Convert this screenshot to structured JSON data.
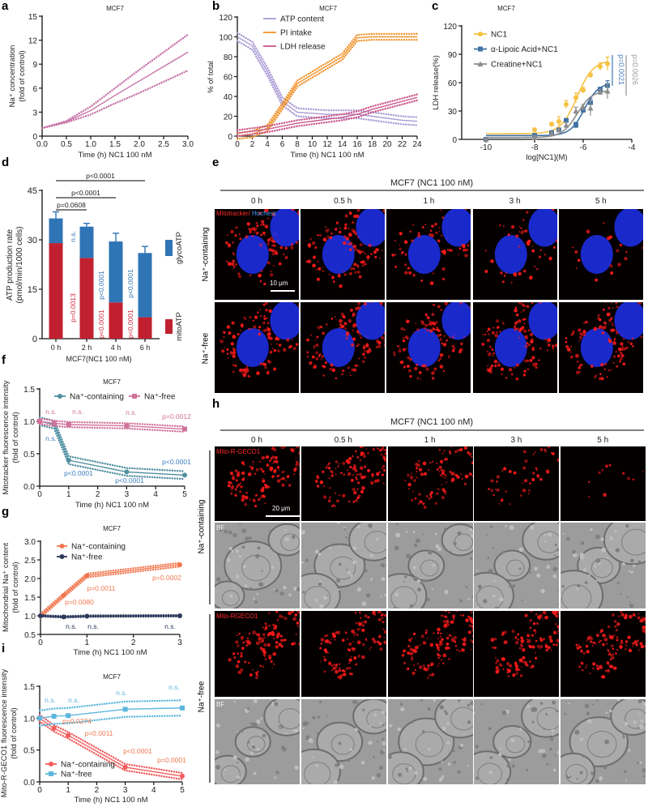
{
  "panel_labels": {
    "a": "a",
    "b": "b",
    "c": "c",
    "d": "d",
    "e": "e",
    "f": "f",
    "g": "g",
    "h": "h",
    "i": "i"
  },
  "chart_data": [
    {
      "panel": "a",
      "type": "line",
      "title": "MCF7",
      "xlabel": "Time (h) NC1 100 nM",
      "ylabel": [
        "Na⁺ concentration",
        "(fold of control)"
      ],
      "xlim": [
        0,
        3
      ],
      "ylim": [
        0,
        15
      ],
      "xticks": [
        0,
        0.5,
        1,
        1.5,
        2,
        2.5,
        3
      ],
      "xtick_labels": [
        "0.0",
        "0.5",
        "1.0",
        "1.5",
        "2.0",
        "2.5",
        "3.0"
      ],
      "yticks": [
        0,
        3,
        6,
        9,
        12,
        15
      ],
      "ytick_labels": [
        "0",
        "3",
        "6",
        "9",
        "12",
        "15"
      ],
      "series": [
        {
          "name": "Na⁺ concentration",
          "color": "#c774a9",
          "x": [
            0,
            0.5,
            1,
            1.5,
            2,
            2.5,
            3
          ],
          "y": [
            1,
            1.8,
            3.2,
            5.1,
            6.9,
            8.7,
            10.5
          ],
          "upper": [
            1,
            1.9,
            3.7,
            6.0,
            8.3,
            10.5,
            12.7
          ],
          "lower": [
            1,
            1.7,
            2.7,
            4.1,
            5.4,
            6.8,
            8.2
          ]
        }
      ]
    },
    {
      "panel": "b",
      "type": "line",
      "title": "MCF7",
      "xlabel": "Time (h) NC1 100 nM",
      "ylabel": [
        "% of total"
      ],
      "xlim": [
        0,
        24
      ],
      "ylim": [
        0,
        120
      ],
      "xticks": [
        0,
        2,
        4,
        6,
        8,
        10,
        12,
        14,
        16,
        18,
        20,
        22,
        24
      ],
      "xtick_labels": [
        "0",
        "2",
        "4",
        "6",
        "8",
        "10",
        "12",
        "14",
        "16",
        "18",
        "20",
        "22",
        "24"
      ],
      "yticks": [
        0,
        20,
        40,
        60,
        80,
        100,
        120
      ],
      "ytick_labels": [
        "0",
        "20",
        "40",
        "60",
        "80",
        "100",
        "120"
      ],
      "legend_position": "top-left",
      "series": [
        {
          "name": "ATP content",
          "color": "#a99bd6",
          "band": 4,
          "x": [
            0,
            2,
            4,
            6,
            8,
            10,
            12,
            14,
            16,
            18,
            20,
            22,
            24
          ],
          "y": [
            100,
            91,
            65,
            35,
            24,
            23,
            22,
            22,
            22,
            20,
            18,
            16,
            15
          ]
        },
        {
          "name": "PI intake",
          "color": "#f0932b",
          "band": 3,
          "x": [
            0,
            2,
            4,
            6,
            8,
            10,
            12,
            14,
            16,
            18,
            20,
            22,
            24
          ],
          "y": [
            0,
            2,
            8,
            30,
            53,
            62,
            71,
            80,
            99,
            100,
            100,
            100,
            100
          ]
        },
        {
          "name": "LDH release",
          "color": "#c9568a",
          "band": 3,
          "x": [
            0,
            2,
            4,
            6,
            8,
            10,
            12,
            14,
            16,
            18,
            20,
            22,
            24
          ],
          "y": [
            3,
            5,
            7,
            10,
            13,
            15,
            17,
            19,
            22,
            27,
            31,
            35,
            39
          ]
        }
      ]
    },
    {
      "panel": "c",
      "type": "scatter",
      "title": "MCF7",
      "xlabel": "log[NC1](M)",
      "ylabel": [
        "LDH release(%)"
      ],
      "xlim": [
        -11,
        -4
      ],
      "ylim": [
        0,
        120
      ],
      "xticks": [
        -10,
        -8,
        -6,
        -4
      ],
      "xtick_labels": [
        "-10",
        "-8",
        "-6",
        "-4"
      ],
      "yticks": [
        0,
        30,
        60,
        90,
        120
      ],
      "ytick_labels": [
        "0",
        "30",
        "60",
        "90",
        "120"
      ],
      "legend_position": "top-left",
      "series": [
        {
          "name": "NC1",
          "color": "#f6c142",
          "marker": "circle",
          "x": [
            -10,
            -8,
            -7.3,
            -7,
            -6.7,
            -6.3,
            -6,
            -5.7,
            -5.3,
            -5
          ],
          "y": [
            0,
            10,
            16,
            19,
            37,
            44,
            52,
            68,
            77,
            80
          ],
          "err": [
            1,
            2,
            2,
            5,
            4,
            5,
            3,
            2,
            4,
            7
          ],
          "fit": {
            "bottom": 6,
            "top": 84,
            "logEC50": -6.25,
            "hill": 1.3
          }
        },
        {
          "name": "α-Lipoic Acid+NC1",
          "color": "#3f73a6",
          "marker": "square",
          "x": [
            -10,
            -8,
            -7.3,
            -7,
            -6.7,
            -6.3,
            -6,
            -5.7,
            -5.3,
            -5
          ],
          "y": [
            0,
            4,
            7,
            10,
            20,
            15,
            31,
            39,
            53,
            57
          ],
          "err": [
            1,
            2,
            2,
            2,
            2,
            3,
            3,
            4,
            2,
            5
          ],
          "fit": {
            "bottom": 4,
            "top": 60,
            "logEC50": -5.95,
            "hill": 1.5
          }
        },
        {
          "name": "Creatine+NC1",
          "color": "#8c8c8c",
          "marker": "triangle",
          "x": [
            -10,
            -8,
            -7.3,
            -7,
            -6.7,
            -6.3,
            -6,
            -5.7,
            -5.3,
            -5
          ],
          "y": [
            0,
            2,
            6,
            10,
            15,
            30,
            34,
            33,
            50,
            51
          ],
          "err": [
            1,
            2,
            2,
            2,
            3,
            4,
            3,
            8,
            3,
            8
          ],
          "fit": {
            "bottom": 2,
            "top": 52,
            "logEC50": -6.25,
            "hill": 1.4
          }
        }
      ],
      "annotations": [
        {
          "text": "p=0.0021",
          "color": "#4a7fbf"
        },
        {
          "text": "p=0.0026",
          "color": "#9a9a9a"
        }
      ]
    },
    {
      "panel": "d",
      "type": "bar",
      "stacked": true,
      "xlabel": "MCF7(NC1 100 nM)",
      "ylabel": [
        "ATP production rate",
        "(pmol/min/1000 cells)"
      ],
      "categories": [
        "0 h",
        "2 h",
        "4 h",
        "6 h"
      ],
      "ylim": [
        0,
        45
      ],
      "yticks": [
        0,
        15,
        30,
        45
      ],
      "ytick_labels": [
        "0",
        "15",
        "30",
        "45"
      ],
      "series": [
        {
          "name": "mitoATP",
          "color": "#c0202f",
          "values": [
            29,
            24.5,
            11,
            6.5
          ],
          "err": [
            1.3,
            1,
            2,
            2
          ]
        },
        {
          "name": "glycoATP",
          "color": "#2f74b5",
          "values": [
            7.5,
            9.5,
            18.5,
            19.5
          ],
          "err": [
            2,
            1,
            2.5,
            2
          ]
        }
      ],
      "comparisons": [
        {
          "label": "p<0.0001",
          "from": 0,
          "to": 3
        },
        {
          "label": "p<0.0001",
          "from": 0,
          "to": 2
        },
        {
          "label": "p=0.0608",
          "from": 0,
          "to": 1
        }
      ],
      "bar_annotations": [
        {
          "text": "n.s.",
          "color": "#2f74b5",
          "category": 1
        },
        {
          "text": "p=0.0013",
          "color": "#d0243a",
          "category": 1
        },
        {
          "text": "p<0.0001",
          "color": "#2f74b5",
          "category": 2
        },
        {
          "text": "p<0.0001",
          "color": "#d0243a",
          "category": 2
        },
        {
          "text": "p<0.0001",
          "color": "#2f74b5",
          "category": 3
        },
        {
          "text": "p<0.0001",
          "color": "#d0243a",
          "category": 3
        }
      ]
    },
    {
      "panel": "f",
      "type": "line",
      "title": "MCF7",
      "xlabel": "Time (h) NC1 100 nM",
      "ylabel": [
        "Mitotracker fluorescence intensity",
        "(fold of control)"
      ],
      "xlim": [
        0,
        5
      ],
      "ylim": [
        0,
        1.5
      ],
      "xticks": [
        0,
        1,
        2,
        3,
        4,
        5
      ],
      "xtick_labels": [
        "0",
        "1",
        "2",
        "3",
        "4",
        "5"
      ],
      "yticks": [
        0,
        0.5,
        1,
        1.5
      ],
      "ytick_labels": [
        "0.0",
        "0.5",
        "1.0",
        "1.5"
      ],
      "legend_position": "top",
      "series": [
        {
          "name": "Na⁺-containing",
          "color": "#4f8ea0",
          "marker": "circle",
          "band": 0.06,
          "x": [
            0,
            0.5,
            1,
            3,
            5
          ],
          "y": [
            1,
            0.95,
            0.4,
            0.22,
            0.17
          ]
        },
        {
          "name": "Na⁺-free",
          "color": "#d0739a",
          "marker": "square",
          "band": 0.04,
          "x": [
            0,
            0.5,
            1,
            3,
            5
          ],
          "y": [
            1,
            0.97,
            0.95,
            0.93,
            0.88
          ]
        }
      ],
      "annotations": [
        {
          "text": "n.s.",
          "color": "#d0739a"
        },
        {
          "text": "n.s.",
          "color": "#d0739a"
        },
        {
          "text": "n.s.",
          "color": "#d0739a"
        },
        {
          "text": "p=0.0012",
          "color": "#d0739a"
        },
        {
          "text": "n.s.",
          "color": "#3d7fc1"
        },
        {
          "text": "p<0.0001",
          "color": "#3d7fc1"
        },
        {
          "text": "p<0.0001",
          "color": "#3d7fc1"
        },
        {
          "text": "p<0.0001",
          "color": "#3d7fc1"
        }
      ]
    },
    {
      "panel": "g",
      "type": "line",
      "title": "MCF7",
      "xlabel": "Time (h) NC1 100 nM",
      "ylabel": [
        "Mitochondrial Na⁺ content",
        "(fold of control)"
      ],
      "xlim": [
        0,
        3
      ],
      "ylim": [
        0.5,
        3
      ],
      "xticks": [
        0,
        1,
        2,
        3
      ],
      "xtick_labels": [
        "0",
        "1",
        "2",
        "3"
      ],
      "yticks": [
        0.5,
        1,
        1.5,
        2,
        2.5,
        3
      ],
      "ytick_labels": [
        "0.5",
        "1.0",
        "1.5",
        "2.0",
        "2.5",
        "3.0"
      ],
      "legend_position": "top-left",
      "series": [
        {
          "name": "Na⁺-containing",
          "color": "#f07850",
          "marker": "circle",
          "band": 0.05,
          "x": [
            0,
            0.5,
            1,
            3
          ],
          "y": [
            1,
            1.55,
            2.08,
            2.37
          ]
        },
        {
          "name": "Na⁺-free",
          "color": "#2e3a5c",
          "marker": "circle",
          "band": 0.02,
          "x": [
            0,
            0.5,
            1,
            3
          ],
          "y": [
            1,
            0.97,
            0.99,
            1.0
          ]
        }
      ],
      "annotations": [
        {
          "text": "p=0.0080",
          "color": "#f07850"
        },
        {
          "text": "p=0.0011",
          "color": "#f07850"
        },
        {
          "text": "p=0.0002",
          "color": "#f07850"
        },
        {
          "text": "n.s.",
          "color": "#2e3a5c"
        },
        {
          "text": "n.s.",
          "color": "#2e3a5c"
        },
        {
          "text": "n.s.",
          "color": "#2e3a5c"
        }
      ]
    },
    {
      "panel": "i",
      "type": "line",
      "title": "MCF7",
      "xlabel": "Time (h) NC1 100 nM",
      "ylabel": [
        "Mito-R-GECO1 fluorescence intensity",
        "(fold of control)"
      ],
      "xlim": [
        0,
        5
      ],
      "ylim": [
        0,
        1.5
      ],
      "xticks": [
        0,
        1,
        2,
        3,
        4,
        5
      ],
      "xtick_labels": [
        "0",
        "1",
        "2",
        "3",
        "4",
        "5"
      ],
      "yticks": [
        0,
        0.5,
        1,
        1.5
      ],
      "ytick_labels": [
        "0.0",
        "0.5",
        "1.0",
        "1.5"
      ],
      "legend_position": "bottom-left",
      "series": [
        {
          "name": "Na⁺-containing",
          "color": "#f25c5c",
          "marker": "circle",
          "band": 0.05,
          "x": [
            0,
            0.5,
            1,
            3,
            5
          ],
          "y": [
            1,
            0.84,
            0.73,
            0.23,
            0.09
          ]
        },
        {
          "name": "Na⁺-free",
          "color": "#5db6dd",
          "marker": "square",
          "band": 0.12,
          "x": [
            0,
            0.5,
            1,
            3,
            5
          ],
          "y": [
            1,
            1.03,
            1.04,
            1.14,
            1.16
          ]
        }
      ],
      "annotations": [
        {
          "text": "n.s.",
          "color": "#5db6dd"
        },
        {
          "text": "n.s.",
          "color": "#5db6dd"
        },
        {
          "text": "n.s.",
          "color": "#5db6dd"
        },
        {
          "text": "n.s.",
          "color": "#5db6dd"
        },
        {
          "text": "p=0.0274",
          "color": "#f07850"
        },
        {
          "text": "p=0.0011",
          "color": "#f07850"
        },
        {
          "text": "p<0.0001",
          "color": "#f07850"
        },
        {
          "text": "p=0.0001",
          "color": "#f07850"
        }
      ]
    }
  ],
  "panel_e": {
    "title": "MCF7 (NC1 100 nM)",
    "timepoints": [
      "0 h",
      "0.5 h",
      "1 h",
      "3 h",
      "5 h"
    ],
    "rows": [
      "Na⁺-containing",
      "Na⁺-free"
    ],
    "stain_red": "Mitotracker/",
    "stain_blue": "Hochest",
    "scale_bar": "10 μm",
    "red_intensity": [
      [
        1,
        1,
        0.6,
        0.4,
        0.2
      ],
      [
        1,
        1,
        1,
        0.95,
        0.95
      ]
    ]
  },
  "panel_h": {
    "title": "MCF7 (NC1 100 nM)",
    "timepoints": [
      "0 h",
      "0.5 h",
      "1 h",
      "3 h",
      "5 h"
    ],
    "rows": [
      "Na⁺-containing",
      "Na⁺-free"
    ],
    "channels": [
      "Mito-R-GECO1",
      "BF",
      "Mito-RGECO1",
      "BF"
    ],
    "scale_bar": "20 μm",
    "red_intensity": [
      [
        1,
        0.85,
        0.75,
        0.35,
        0.12
      ],
      [
        1,
        1,
        1,
        1,
        1
      ]
    ]
  }
}
